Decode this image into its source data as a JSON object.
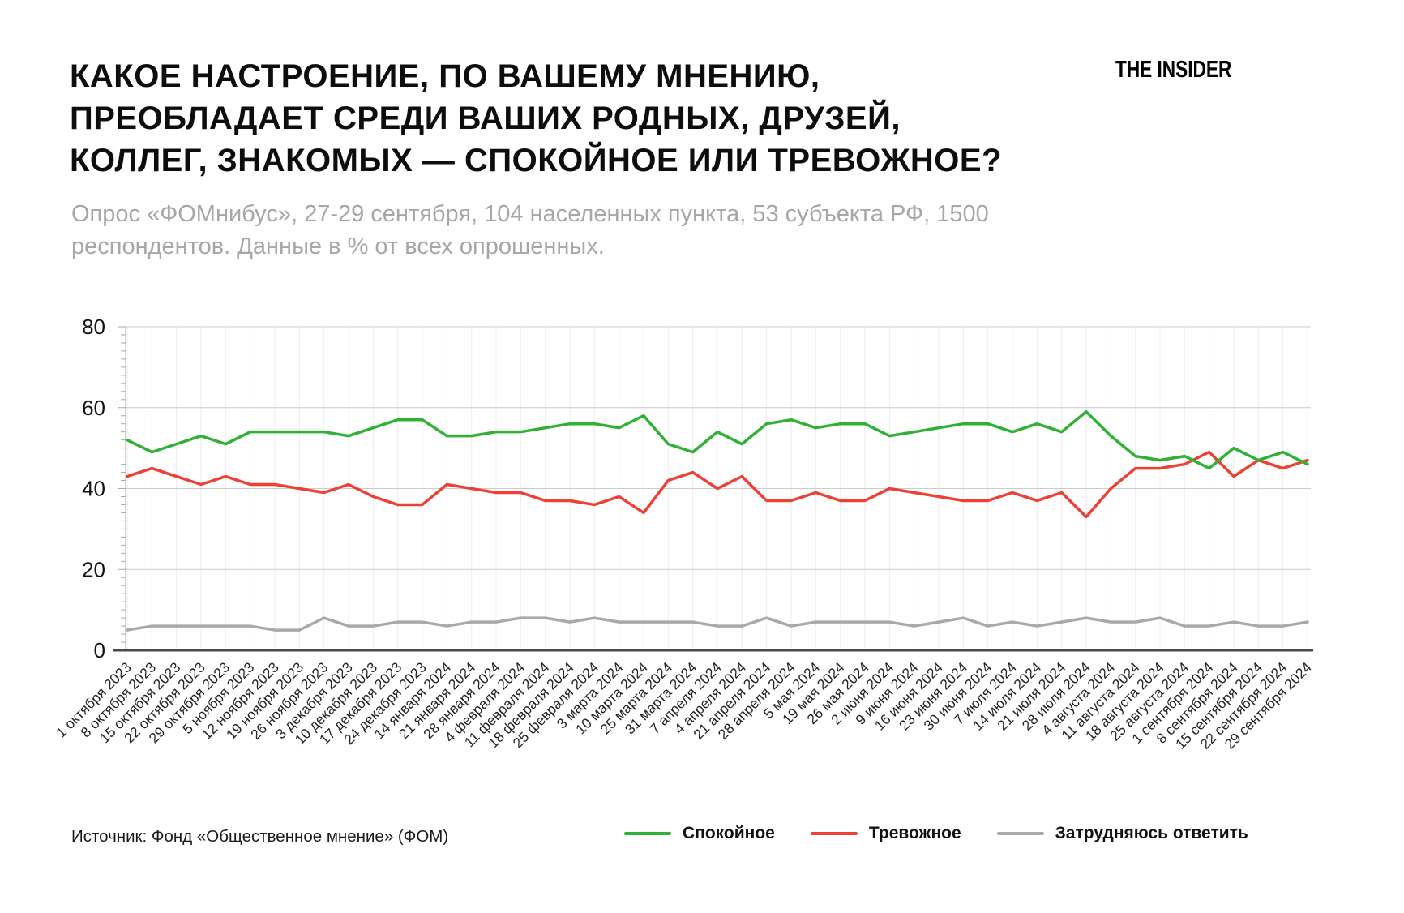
{
  "header": {
    "title_lines": [
      "КАКОЕ НАСТРОЕНИЕ, ПО ВАШЕМУ МНЕНИЮ,",
      "ПРЕОБЛАДАЕТ СРЕДИ ВАШИХ РОДНЫХ, ДРУЗЕЙ,",
      "КОЛЛЕГ, ЗНАКОМЫХ — СПОКОЙНОЕ ИЛИ ТРЕВОЖНОЕ?"
    ],
    "logo": "THE INSIDER",
    "subtitle": "Опрос «ФОМнибус», 27-29 сентября, 104 населенных пункта, 53 субъекта РФ, 1500 респондентов. Данные в % от всех опрошенных."
  },
  "footer": {
    "source": "Источник: Фонд «Общественное мнение» (ФОМ)"
  },
  "colors": {
    "calm_green": "#2eb135",
    "anxious_red": "#ee4136",
    "undecided_gray": "#a9a9a9",
    "grid_vertical": "#ededed",
    "grid_major": "#cccccc",
    "axis_dark": "#4a4a4a"
  },
  "chart_data": {
    "type": "line",
    "title": "Какое настроение преобладает среди ваших родных, друзей, коллег, знакомых — спокойное или тревожное?",
    "xlabel": "",
    "ylabel": "",
    "ylim": [
      0,
      80
    ],
    "yticks": [
      0,
      20,
      40,
      60,
      80
    ],
    "grid": true,
    "legend_position": "bottom",
    "categories": [
      "1 октября 2023",
      "8 октября 2023",
      "15 октября 2023",
      "22 октября 2023",
      "29 октября 2023",
      "5 ноября 2023",
      "12 ноября 2023",
      "19 ноября 2023",
      "26 ноября 2023",
      "3 декабря 2023",
      "10 декабря 2023",
      "17 декабря 2023",
      "24 декабря 2023",
      "14 января 2024",
      "21 января 2024",
      "28 января 2024",
      "4 февраля 2024",
      "11 февраля 2024",
      "18 февраля 2024",
      "25 февраля 2024",
      "3 марта 2024",
      "10 марта 2024",
      "25 марта 2024",
      "31 марта 2024",
      "7 апреля 2024",
      "4 апреля 2024",
      "21 апреля 2024",
      "28 апреля 2024",
      "5 мая 2024",
      "19 мая 2024",
      "26 мая 2024",
      "2 июня 2024",
      "9 июня 2024",
      "16 июня 2024",
      "23 июня 2024",
      "30 июня 2024",
      "7 июля 2024",
      "14 июля 2024",
      "21 июля 2024",
      "28 июля 2024",
      "4 августа 2024",
      "11 августа 2024",
      "18 августа 2024",
      "25 августа 2024",
      "1 сентября 2024",
      "8 сентября 2024",
      "15 сентября 2024",
      "22 сентября 2024",
      "29 сентября 2024"
    ],
    "series": [
      {
        "name": "Спокойное",
        "color": "#2eb135",
        "values": [
          52,
          49,
          51,
          53,
          51,
          54,
          54,
          54,
          54,
          53,
          55,
          57,
          57,
          53,
          53,
          54,
          54,
          55,
          56,
          56,
          55,
          58,
          51,
          49,
          54,
          51,
          56,
          57,
          55,
          56,
          56,
          53,
          54,
          55,
          56,
          56,
          54,
          56,
          54,
          59,
          53,
          48,
          47,
          48,
          45,
          50,
          47,
          49,
          46
        ]
      },
      {
        "name": "Тревожное",
        "color": "#ee4136",
        "values": [
          43,
          45,
          43,
          41,
          43,
          41,
          41,
          40,
          39,
          41,
          38,
          36,
          36,
          41,
          40,
          39,
          39,
          37,
          37,
          36,
          38,
          34,
          42,
          44,
          40,
          43,
          37,
          37,
          39,
          37,
          37,
          40,
          39,
          38,
          37,
          37,
          39,
          37,
          39,
          33,
          40,
          45,
          45,
          46,
          49,
          43,
          47,
          45,
          47
        ]
      },
      {
        "name": "Затрудняюсь ответить",
        "color": "#a9a9a9",
        "values": [
          5,
          6,
          6,
          6,
          6,
          6,
          5,
          5,
          8,
          6,
          6,
          7,
          7,
          6,
          7,
          7,
          8,
          8,
          7,
          8,
          7,
          7,
          7,
          7,
          6,
          6,
          8,
          6,
          7,
          7,
          7,
          7,
          6,
          7,
          8,
          6,
          7,
          6,
          7,
          8,
          7,
          7,
          8,
          6,
          6,
          7,
          6,
          6,
          7
        ]
      }
    ]
  }
}
